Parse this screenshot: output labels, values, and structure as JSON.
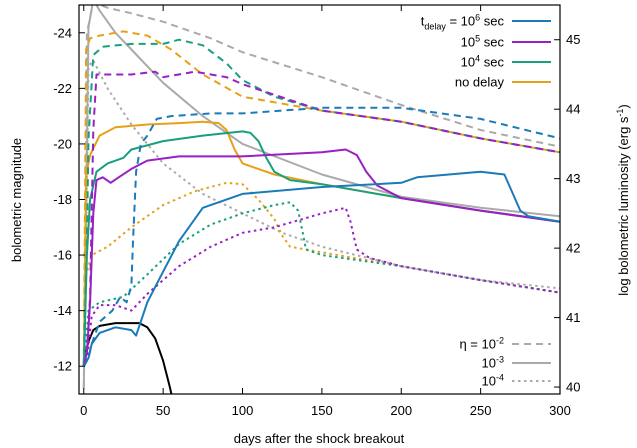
{
  "chart_data": {
    "type": "line",
    "xlabel": "days after the shock breakout",
    "ylabel_left": "bolometric magnitude",
    "ylabel_right_main": "log bolometric luminosity (erg s",
    "ylabel_right_sup": "-1",
    "ylabel_right_close": ")",
    "xlim": [
      -3,
      300
    ],
    "ylim_left": [
      -11,
      -25
    ],
    "ylim_right": [
      39.9,
      45.5
    ],
    "x_ticks": [
      0,
      50,
      100,
      150,
      200,
      250,
      300
    ],
    "y_left_ticks": [
      -12,
      -14,
      -16,
      -18,
      -20,
      -22,
      -24
    ],
    "y_right_ticks": [
      40,
      41,
      42,
      43,
      44,
      45
    ],
    "grid": false,
    "legend_delay": {
      "placement": "top-right",
      "entries": [
        {
          "label_parts": [
            {
              "t": "t",
              "type": "n"
            },
            {
              "t": "delay",
              "type": "sub"
            },
            {
              "t": " = 10",
              "type": "n"
            },
            {
              "t": "6",
              "type": "sup"
            },
            {
              "t": " sec",
              "type": "n"
            }
          ],
          "color": "#1b7ab8"
        },
        {
          "label_parts": [
            {
              "t": "10",
              "type": "n"
            },
            {
              "t": "5",
              "type": "sup"
            },
            {
              "t": " sec",
              "type": "n"
            }
          ],
          "color": "#9a1fc4"
        },
        {
          "label_parts": [
            {
              "t": "10",
              "type": "n"
            },
            {
              "t": "4",
              "type": "sup"
            },
            {
              "t": " sec",
              "type": "n"
            }
          ],
          "color": "#17a07e"
        },
        {
          "label_parts": [
            {
              "t": "no delay",
              "type": "n"
            }
          ],
          "color": "#e6a118"
        }
      ]
    },
    "legend_eta": {
      "placement": "bottom-right",
      "entries": [
        {
          "label_parts": [
            {
              "t": "η = 10",
              "type": "n"
            },
            {
              "t": "-2",
              "type": "sup"
            }
          ],
          "dash": "dashed"
        },
        {
          "label_parts": [
            {
              "t": "10",
              "type": "n"
            },
            {
              "t": "-3",
              "type": "sup"
            }
          ],
          "dash": "solid"
        },
        {
          "label_parts": [
            {
              "t": "10",
              "type": "n"
            },
            {
              "t": "-4",
              "type": "sup"
            }
          ],
          "dash": "dotted"
        }
      ]
    },
    "colors": {
      "reference": "#aaaaaa",
      "black": "#000000"
    },
    "series": [
      {
        "color": "gray",
        "dash": "dashed",
        "points": [
          [
            0,
            -11.2
          ],
          [
            2,
            -24.0
          ],
          [
            6,
            -25.1
          ],
          [
            15,
            -24.9
          ],
          [
            30,
            -24.7
          ],
          [
            50,
            -24.4
          ],
          [
            80,
            -23.8
          ],
          [
            100,
            -23.3
          ],
          [
            150,
            -22.4
          ],
          [
            200,
            -21.4
          ],
          [
            250,
            -20.5
          ],
          [
            300,
            -19.9
          ]
        ]
      },
      {
        "color": "gray",
        "dash": "solid",
        "points": [
          [
            0,
            -11.2
          ],
          [
            3,
            -24.2
          ],
          [
            6,
            -25.2
          ],
          [
            10,
            -24.8
          ],
          [
            20,
            -24.0
          ],
          [
            30,
            -23.4
          ],
          [
            50,
            -22.2
          ],
          [
            75,
            -21.0
          ],
          [
            100,
            -20.0
          ],
          [
            150,
            -18.9
          ],
          [
            200,
            -18.1
          ],
          [
            250,
            -17.7
          ],
          [
            300,
            -17.4
          ]
        ]
      },
      {
        "color": "gray",
        "dash": "dotted",
        "points": [
          [
            0,
            -11.2
          ],
          [
            3,
            -22.8
          ],
          [
            6,
            -23.0
          ],
          [
            15,
            -22.0
          ],
          [
            30,
            -20.7
          ],
          [
            50,
            -19.3
          ],
          [
            75,
            -18.2
          ],
          [
            100,
            -17.5
          ],
          [
            125,
            -16.8
          ],
          [
            150,
            -16.3
          ],
          [
            200,
            -15.6
          ],
          [
            250,
            -15.1
          ],
          [
            300,
            -14.8
          ]
        ]
      },
      {
        "color": "black",
        "dash": "solid",
        "points": [
          [
            1,
            -12.4
          ],
          [
            3,
            -12.9
          ],
          [
            6,
            -13.3
          ],
          [
            10,
            -13.45
          ],
          [
            20,
            -13.55
          ],
          [
            35,
            -13.55
          ],
          [
            40,
            -13.4
          ],
          [
            45,
            -13.0
          ],
          [
            50,
            -12.2
          ],
          [
            54,
            -11.3
          ],
          [
            56,
            -10.8
          ]
        ]
      },
      {
        "color": "#e6a118",
        "dash": "dashed",
        "points": [
          [
            0,
            -12.0
          ],
          [
            1.5,
            -23.4
          ],
          [
            4,
            -23.8
          ],
          [
            10,
            -23.9
          ],
          [
            25,
            -24.05
          ],
          [
            40,
            -23.9
          ],
          [
            55,
            -23.4
          ],
          [
            75,
            -22.5
          ],
          [
            100,
            -21.7
          ],
          [
            150,
            -21.2
          ],
          [
            200,
            -20.8
          ],
          [
            250,
            -20.2
          ],
          [
            300,
            -19.7
          ]
        ]
      },
      {
        "color": "#e6a118",
        "dash": "solid",
        "points": [
          [
            0,
            -12.0
          ],
          [
            1.5,
            -18.9
          ],
          [
            4,
            -19.6
          ],
          [
            10,
            -20.3
          ],
          [
            20,
            -20.6
          ],
          [
            40,
            -20.7
          ],
          [
            60,
            -20.75
          ],
          [
            75,
            -20.8
          ],
          [
            85,
            -20.75
          ],
          [
            90,
            -20.5
          ],
          [
            95,
            -19.8
          ],
          [
            100,
            -19.3
          ],
          [
            120,
            -18.9
          ],
          [
            150,
            -18.55
          ],
          [
            200,
            -18.05
          ],
          [
            250,
            -17.6
          ],
          [
            300,
            -17.2
          ]
        ]
      },
      {
        "color": "#e6a118",
        "dash": "dotted",
        "points": [
          [
            0,
            -12.0
          ],
          [
            1.5,
            -15.3
          ],
          [
            5,
            -16.0
          ],
          [
            15,
            -16.3
          ],
          [
            30,
            -17.0
          ],
          [
            50,
            -17.8
          ],
          [
            70,
            -18.3
          ],
          [
            90,
            -18.6
          ],
          [
            100,
            -18.55
          ],
          [
            110,
            -18.0
          ],
          [
            120,
            -17.3
          ],
          [
            125,
            -16.7
          ],
          [
            130,
            -16.3
          ],
          [
            160,
            -16.0
          ],
          [
            200,
            -15.6
          ],
          [
            250,
            -15.1
          ],
          [
            300,
            -14.65
          ]
        ]
      },
      {
        "color": "#17a07e",
        "dash": "dashed",
        "points": [
          [
            0,
            -12.0
          ],
          [
            2,
            -16.5
          ],
          [
            3,
            -20.2
          ],
          [
            6,
            -23.2
          ],
          [
            12,
            -23.5
          ],
          [
            30,
            -23.6
          ],
          [
            50,
            -23.6
          ],
          [
            60,
            -23.75
          ],
          [
            75,
            -23.55
          ],
          [
            90,
            -22.9
          ],
          [
            100,
            -22.3
          ],
          [
            120,
            -21.7
          ],
          [
            150,
            -21.2
          ],
          [
            200,
            -20.8
          ],
          [
            250,
            -20.2
          ],
          [
            300,
            -19.7
          ]
        ]
      },
      {
        "color": "#17a07e",
        "dash": "solid",
        "points": [
          [
            0,
            -12.0
          ],
          [
            2,
            -16.0
          ],
          [
            4,
            -18.0
          ],
          [
            8,
            -19.0
          ],
          [
            15,
            -19.3
          ],
          [
            25,
            -19.5
          ],
          [
            30,
            -19.8
          ],
          [
            50,
            -20.1
          ],
          [
            75,
            -20.3
          ],
          [
            100,
            -20.45
          ],
          [
            105,
            -20.4
          ],
          [
            110,
            -20.1
          ],
          [
            115,
            -19.5
          ],
          [
            120,
            -19.0
          ],
          [
            130,
            -18.7
          ],
          [
            150,
            -18.55
          ],
          [
            200,
            -18.05
          ],
          [
            250,
            -17.6
          ],
          [
            300,
            -17.2
          ]
        ]
      },
      {
        "color": "#17a07e",
        "dash": "dotted",
        "points": [
          [
            0,
            -12.0
          ],
          [
            3,
            -14.0
          ],
          [
            10,
            -14.3
          ],
          [
            25,
            -14.5
          ],
          [
            40,
            -15.3
          ],
          [
            60,
            -16.4
          ],
          [
            80,
            -17.1
          ],
          [
            100,
            -17.5
          ],
          [
            120,
            -17.8
          ],
          [
            130,
            -17.9
          ],
          [
            135,
            -17.6
          ],
          [
            138,
            -16.8
          ],
          [
            140,
            -16.2
          ],
          [
            150,
            -16.0
          ],
          [
            200,
            -15.6
          ],
          [
            250,
            -15.1
          ],
          [
            300,
            -14.65
          ]
        ]
      },
      {
        "color": "#9a1fc4",
        "dash": "dashed",
        "points": [
          [
            0,
            -12.0
          ],
          [
            2,
            -12.5
          ],
          [
            4,
            -14.5
          ],
          [
            6,
            -20.5
          ],
          [
            8,
            -22.5
          ],
          [
            15,
            -22.5
          ],
          [
            30,
            -22.5
          ],
          [
            45,
            -22.6
          ],
          [
            50,
            -22.4
          ],
          [
            70,
            -22.6
          ],
          [
            90,
            -22.4
          ],
          [
            100,
            -22.15
          ],
          [
            150,
            -21.2
          ],
          [
            200,
            -20.8
          ],
          [
            250,
            -20.2
          ],
          [
            300,
            -19.7
          ]
        ]
      },
      {
        "color": "#9a1fc4",
        "dash": "solid",
        "points": [
          [
            0,
            -12.0
          ],
          [
            2,
            -12.5
          ],
          [
            4,
            -14.3
          ],
          [
            6,
            -17.5
          ],
          [
            8,
            -18.7
          ],
          [
            12,
            -18.8
          ],
          [
            17,
            -18.6
          ],
          [
            22,
            -18.8
          ],
          [
            30,
            -19.1
          ],
          [
            40,
            -19.4
          ],
          [
            60,
            -19.55
          ],
          [
            100,
            -19.55
          ],
          [
            150,
            -19.7
          ],
          [
            165,
            -19.8
          ],
          [
            172,
            -19.6
          ],
          [
            178,
            -19.0
          ],
          [
            185,
            -18.5
          ],
          [
            200,
            -18.05
          ],
          [
            250,
            -17.6
          ],
          [
            300,
            -17.2
          ]
        ]
      },
      {
        "color": "#9a1fc4",
        "dash": "dotted",
        "points": [
          [
            0,
            -12.0
          ],
          [
            2,
            -12.2
          ],
          [
            5,
            -13.8
          ],
          [
            10,
            -14.2
          ],
          [
            20,
            -14.2
          ],
          [
            30,
            -14.0
          ],
          [
            40,
            -14.6
          ],
          [
            60,
            -15.6
          ],
          [
            80,
            -16.3
          ],
          [
            100,
            -16.8
          ],
          [
            120,
            -17.0
          ],
          [
            150,
            -17.5
          ],
          [
            165,
            -17.7
          ],
          [
            168,
            -17.2
          ],
          [
            172,
            -16.2
          ],
          [
            180,
            -15.9
          ],
          [
            200,
            -15.6
          ],
          [
            250,
            -15.1
          ],
          [
            300,
            -14.65
          ]
        ]
      },
      {
        "color": "#1b7ab8",
        "dash": "dashed",
        "points": [
          [
            0,
            -12.0
          ],
          [
            3,
            -12.3
          ],
          [
            5,
            -12.8
          ],
          [
            10,
            -13.6
          ],
          [
            18,
            -14.0
          ],
          [
            23,
            -14.5
          ],
          [
            27,
            -14.3
          ],
          [
            30,
            -14.9
          ],
          [
            31,
            -16.5
          ],
          [
            33,
            -19.0
          ],
          [
            36,
            -20.0
          ],
          [
            40,
            -20.3
          ],
          [
            46,
            -20.9
          ],
          [
            55,
            -21.0
          ],
          [
            80,
            -21.1
          ],
          [
            100,
            -21.1
          ],
          [
            150,
            -21.3
          ],
          [
            200,
            -21.3
          ],
          [
            250,
            -20.9
          ],
          [
            300,
            -20.2
          ]
        ]
      },
      {
        "color": "#1b7ab8",
        "dash": "solid",
        "points": [
          [
            0,
            -12.0
          ],
          [
            3,
            -12.3
          ],
          [
            5,
            -12.8
          ],
          [
            10,
            -13.2
          ],
          [
            20,
            -13.4
          ],
          [
            30,
            -13.3
          ],
          [
            33,
            -13.1
          ],
          [
            40,
            -14.3
          ],
          [
            50,
            -15.4
          ],
          [
            60,
            -16.5
          ],
          [
            75,
            -17.7
          ],
          [
            100,
            -18.2
          ],
          [
            150,
            -18.45
          ],
          [
            200,
            -18.6
          ],
          [
            210,
            -18.8
          ],
          [
            250,
            -19.0
          ],
          [
            265,
            -18.9
          ],
          [
            275,
            -17.6
          ],
          [
            280,
            -17.4
          ],
          [
            300,
            -17.2
          ]
        ]
      }
    ]
  }
}
